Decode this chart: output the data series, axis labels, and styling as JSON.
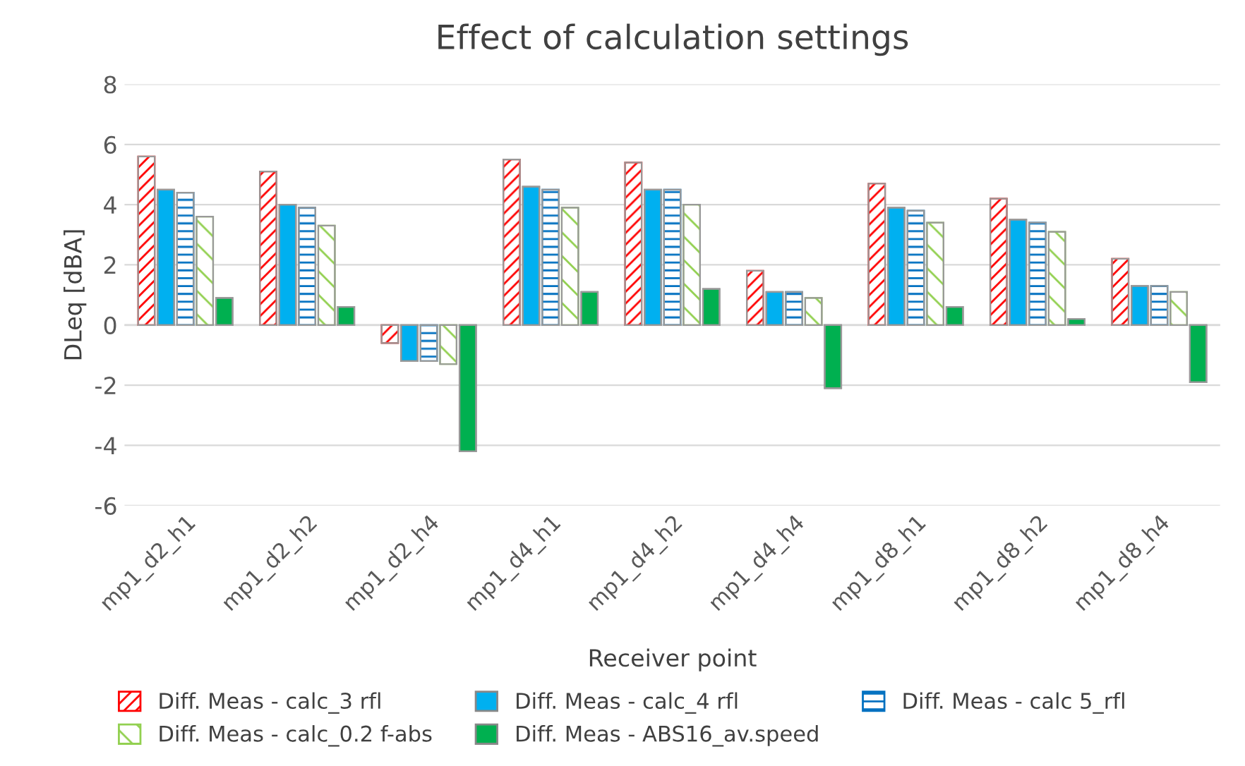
{
  "chart_data": {
    "type": "bar",
    "title": "Effect of calculation settings",
    "xlabel": "Receiver point",
    "ylabel": "DLeq [dBA]",
    "categories": [
      "mp1_d2_h1",
      "mp1_d2_h2",
      "mp1_d2_h4",
      "mp1_d4_h1",
      "mp1_d4_h2",
      "mp1_d4_h4",
      "mp1_d8_h1",
      "mp1_d8_h2",
      "mp1_d8_h4"
    ],
    "series": [
      {
        "name": "Diff. Meas - calc_3 rfl",
        "color": "#ff0000",
        "values": [
          5.6,
          5.1,
          -0.6,
          5.5,
          5.4,
          1.8,
          4.7,
          4.2,
          2.2
        ]
      },
      {
        "name": "Diff. Meas - calc_4 rfl",
        "color": "#00b0f0",
        "values": [
          4.5,
          4.0,
          -1.2,
          4.6,
          4.5,
          1.1,
          3.9,
          3.5,
          1.3
        ]
      },
      {
        "name": "Diff. Meas - calc 5_rfl",
        "color": "#0070c0",
        "values": [
          4.4,
          3.9,
          -1.2,
          4.5,
          4.5,
          1.1,
          3.8,
          3.4,
          1.3
        ]
      },
      {
        "name": "Diff. Meas - calc_0.2 f-abs",
        "color": "#92d050",
        "values": [
          3.6,
          3.3,
          -1.3,
          3.9,
          4.0,
          0.9,
          3.4,
          3.1,
          1.1
        ]
      },
      {
        "name": "Diff. Meas - ABS16_av.speed",
        "color": "#00b050",
        "values": [
          0.9,
          0.6,
          -4.2,
          1.1,
          1.2,
          -2.1,
          0.6,
          0.2,
          -1.9
        ]
      }
    ],
    "ylim": [
      -6,
      8
    ],
    "yticks": [
      -6,
      -4,
      -2,
      0,
      2,
      4,
      6,
      8
    ],
    "grid": "y",
    "legend": "bottom"
  }
}
